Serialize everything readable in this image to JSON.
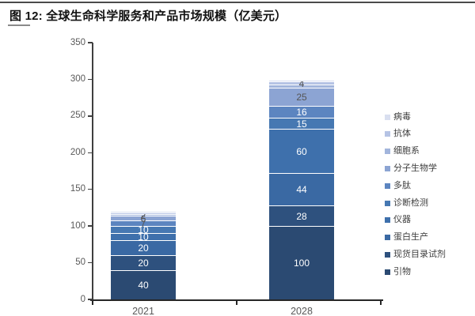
{
  "figure": {
    "full_title": "图 12:  全球生命科学服务和产品市场规模（亿美元）"
  },
  "chart_data": {
    "type": "bar",
    "stacked": true,
    "title": "全球生命科学服务和产品市场规模（亿美元）",
    "figure_label": "图 12",
    "unit": "亿美元",
    "categories": [
      "2021",
      "2028"
    ],
    "series": [
      {
        "name": "引物",
        "color": "#2B4A72",
        "values": [
          40,
          100
        ],
        "label_show": [
          true,
          true
        ],
        "label_colors": [
          "#FFFFFF",
          "#FFFFFF"
        ]
      },
      {
        "name": "现货目录试剂",
        "color": "#2E517E",
        "values": [
          20,
          28
        ],
        "label_show": [
          true,
          true
        ],
        "label_colors": [
          "#FFFFFF",
          "#FFFFFF"
        ]
      },
      {
        "name": "蛋白生产",
        "color": "#3A69A3",
        "values": [
          20,
          44
        ],
        "label_show": [
          true,
          true
        ],
        "label_colors": [
          "#FFFFFF",
          "#FFFFFF"
        ]
      },
      {
        "name": "仪器",
        "color": "#3E70AC",
        "values": [
          10,
          60
        ],
        "label_show": [
          true,
          true
        ],
        "label_colors": [
          "#FFFFFF",
          "#FFFFFF"
        ]
      },
      {
        "name": "诊断检测",
        "color": "#4678B2",
        "values": [
          10,
          15
        ],
        "label_show": [
          true,
          true
        ],
        "label_colors": [
          "#FFFFFF",
          "#FFFFFF"
        ]
      },
      {
        "name": "多肽",
        "color": "#5C85C0",
        "values": [
          7,
          16
        ],
        "label_show": [
          true,
          true
        ],
        "label_colors": [
          "#555555",
          "#FFFFFF"
        ]
      },
      {
        "name": "分子生物学",
        "color": "#8CA4D3",
        "values": [
          6,
          25
        ],
        "label_show": [
          true,
          true
        ],
        "label_colors": [
          "#555555",
          "#555555"
        ]
      },
      {
        "name": "细胞系",
        "color": "#A2B5DC",
        "values": [
          2,
          4
        ],
        "label_show": [
          true,
          false
        ],
        "label_colors": [
          "#555555",
          "#555555"
        ]
      },
      {
        "name": "抗体",
        "color": "#B5C3E4",
        "values": [
          2,
          4
        ],
        "label_show": [
          false,
          true
        ],
        "label_colors": [
          "#555555",
          "#555555"
        ]
      },
      {
        "name": "病毒",
        "color": "#D9DFF0",
        "values": [
          2,
          2
        ],
        "label_show": [
          false,
          false
        ],
        "label_colors": [
          "#555555",
          "#555555"
        ]
      }
    ],
    "totals": [
      119,
      298
    ],
    "ylim": [
      0,
      350
    ],
    "yticks": [
      0,
      50,
      100,
      150,
      200,
      250,
      300,
      350
    ],
    "grid": false,
    "legend_position": "right",
    "legend_order_top_to_bottom": [
      "病毒",
      "抗体",
      "细胞系",
      "分子生物学",
      "多肽",
      "诊断检测",
      "仪器",
      "蛋白生产",
      "现货目录试剂",
      "引物"
    ]
  },
  "colors": {
    "axis_text": "#595959",
    "axis_line": "#3f3f3f",
    "x_axis_line": "#262626",
    "title_text": "#111111",
    "top_rule": "#4a4a4a",
    "title_underline": "#8a8a8a",
    "label_on_dark": "#FFFFFF",
    "label_on_light": "#555555",
    "background": "#FFFFFF"
  }
}
